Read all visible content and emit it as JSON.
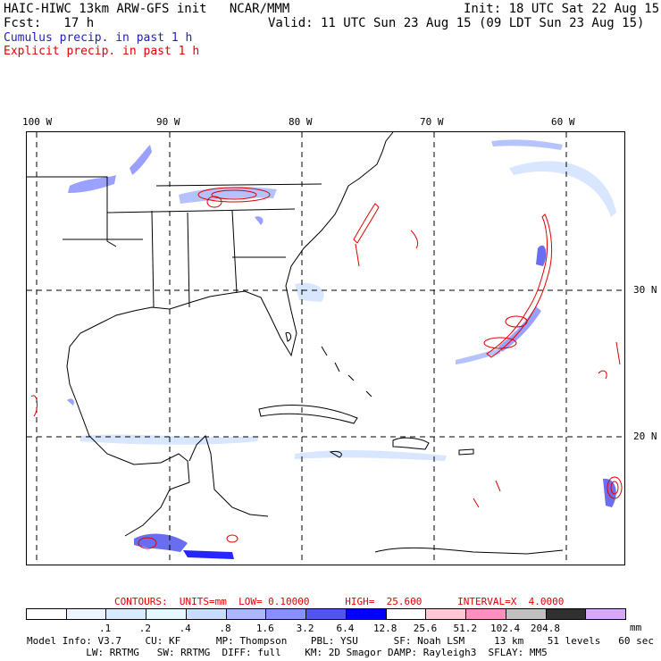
{
  "header": {
    "model_title": "HAIC-HIWC 13km ARW-GFS init   NCAR/MMM",
    "init": "Init: 18 UTC Sat 22 Aug 15",
    "fcst": "Fcst:   17 h",
    "valid": "Valid: 11 UTC Sun 23 Aug 15 (09 LDT Sun 23 Aug 15)",
    "cumulus_label": "Cumulus precip. in past 1 h",
    "explicit_label": "Explicit precip. in past 1 h",
    "cumulus_color": "#2020c0",
    "explicit_color": "#e00000"
  },
  "map": {
    "longitude_labels": [
      "100 W",
      "90 W",
      "80 W",
      "70 W",
      "60 W"
    ],
    "latitude_labels": [
      "30 N",
      "20 N"
    ],
    "contour_color": "#e00000",
    "coast_color": "#000000"
  },
  "contours": {
    "text": "CONTOURS:  UNITS=mm  LOW= 0.10000      HIGH=  25.600      INTERVAL=X  4.0000"
  },
  "colorbar": {
    "colors": [
      "#ffffff",
      "#eef5ff",
      "#d8eaff",
      "#e6f8ff",
      "#c8dcff",
      "#aab8ff",
      "#8890ff",
      "#5055ee",
      "#0000ff",
      "#ffffff",
      "#ffc8d4",
      "#ff90c0",
      "#c0c0c0",
      "#303030",
      "#d8a8ff"
    ],
    "labels": [
      ".1",
      ".2",
      ".4",
      ".8",
      "1.6",
      "3.2",
      "6.4",
      "12.8",
      "25.6",
      "51.2",
      "102.4",
      "204.8"
    ],
    "units": "mm"
  },
  "footer": {
    "line1": "Model Info: V3.7    CU: KF      MP: Thompson    PBL: YSU      SF: Noah LSM     13 km    51 levels   60 sec",
    "line2": "          LW: RRTMG   SW: RRTMG  DIFF: full    KM: 2D Smagor DAMP: Rayleigh3  SFLAY: MM5"
  }
}
